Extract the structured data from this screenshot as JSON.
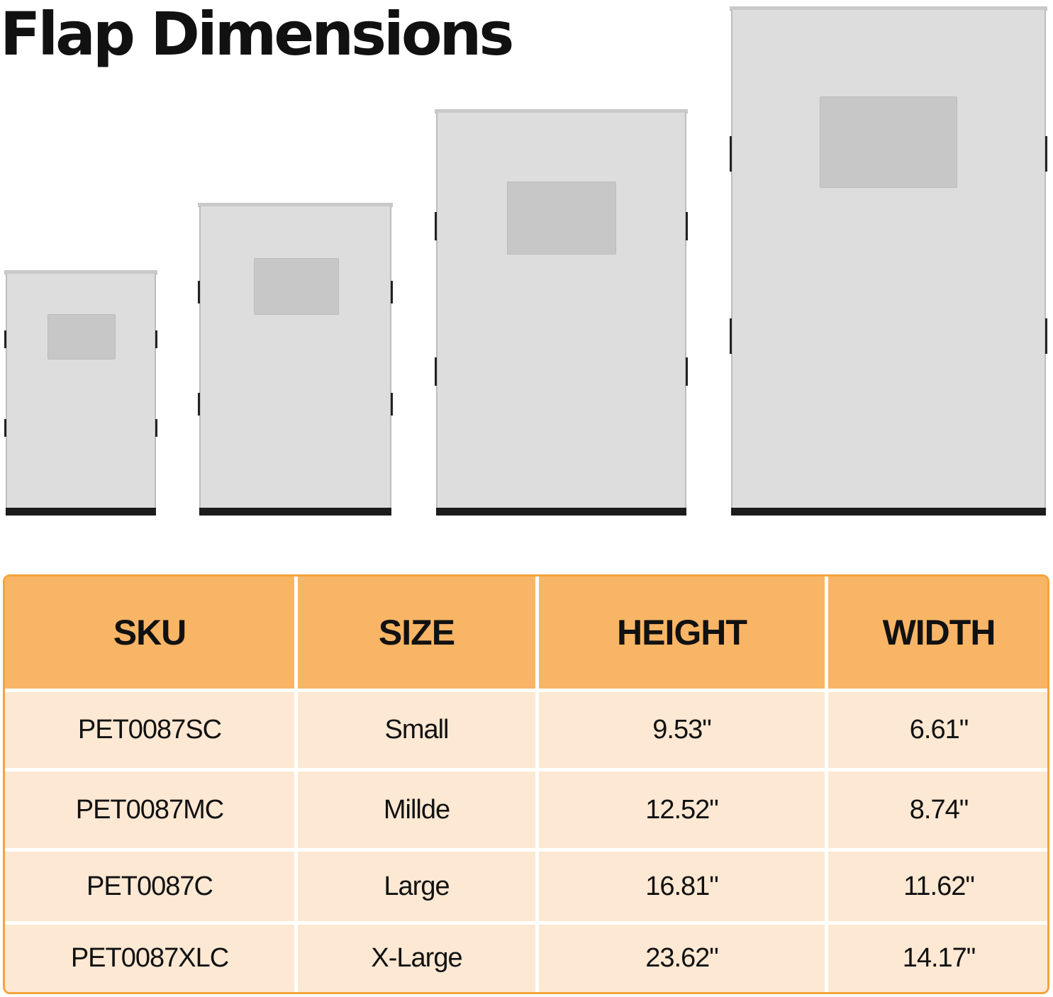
{
  "title": "Flap Dimensions",
  "flaps": [
    {
      "size": "Small"
    },
    {
      "size": "Millde"
    },
    {
      "size": "Large"
    },
    {
      "size": "X-Large"
    }
  ],
  "table": {
    "headers": [
      "SKU",
      "SIZE",
      "HEIGHT",
      "WIDTH"
    ],
    "rows": [
      [
        "PET0087SC",
        "Small",
        "9.53\"",
        "6.61\""
      ],
      [
        "PET0087MC",
        "Millde",
        "12.52\"",
        "8.74\""
      ],
      [
        "PET0087C",
        "Large",
        "16.81\"",
        "11.62\""
      ],
      [
        "PET0087XLC",
        "X-Large",
        "23.62\"",
        "14.17\""
      ]
    ]
  },
  "colors": {
    "header_bg": "#f8b566",
    "row_bg": "#fde8d3",
    "border": "#f3a43d",
    "flap_body": "#dddddd",
    "flap_window": "#c7c7c7",
    "flap_base": "#1c1c1c"
  }
}
